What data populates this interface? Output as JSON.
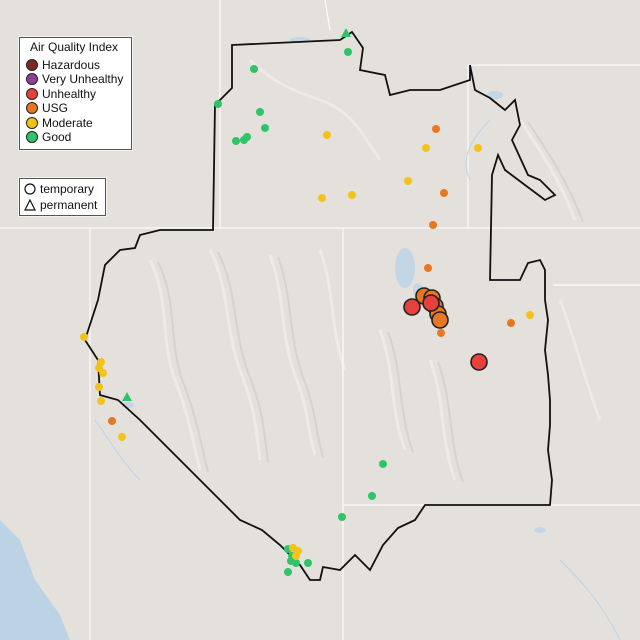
{
  "legend": {
    "title": "Air Quality Index",
    "categories": [
      {
        "label": "Hazardous",
        "color": "#7e2a24"
      },
      {
        "label": "Very Unhealthy",
        "color": "#8f3f97"
      },
      {
        "label": "Unhealthy",
        "color": "#e8403c"
      },
      {
        "label": "USG",
        "color": "#e87722"
      },
      {
        "label": "Moderate",
        "color": "#f2c31a"
      },
      {
        "label": "Good",
        "color": "#2fc468"
      }
    ]
  },
  "monitor_types": {
    "temporary": "temporary",
    "permanent": "permanent"
  }
}
